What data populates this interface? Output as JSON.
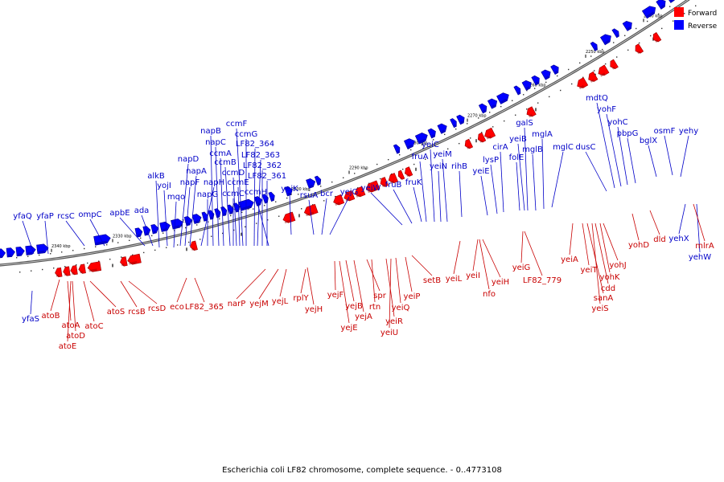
{
  "legend": {
    "forward_label": "Forward",
    "forward_color": "#ff0000",
    "reverse_label": "Reverse",
    "reverse_color": "#0000ff"
  },
  "caption": "Escherichia coli LF82 chromosome, complete sequence. - 0..4773108",
  "tick_labels": [
    "2340 kbp",
    "2330 kbp",
    "2320 kbp",
    "2310 kbp",
    "2300 kbp",
    "2290 kbp",
    "2280 kbp",
    "2270 kbp",
    "2260 kbp",
    "2250 kbp",
    "2240 kbp",
    "2230 kbp"
  ],
  "reverse_genes": [
    "yfaQ",
    "yfaP",
    "rcsC",
    "ompC",
    "apbE",
    "ada",
    "alkB",
    "yojI",
    "mqo",
    "napF",
    "napD",
    "napA",
    "napH",
    "napG",
    "napB",
    "napC",
    "ccmA",
    "ccmB",
    "ccmD",
    "ccmC",
    "ccmE",
    "ccmF",
    "ccmG",
    "LF82_364",
    "LF82_363",
    "LF82_362",
    "LF82_361",
    "ccmH",
    "yejK",
    "rsuA",
    "bcr",
    "yejG",
    "yeiW",
    "fruB",
    "fruK",
    "fruA",
    "yeiC",
    "yeiN",
    "yeiM",
    "rihB",
    "yeiE",
    "lysP",
    "cirA",
    "folE",
    "yeiB",
    "galS",
    "mglB",
    "mglA",
    "mglC",
    "dusC",
    "mdtQ",
    "yohF",
    "yohC",
    "pbpG",
    "bglX",
    "osmF",
    "yehy",
    "yfaS",
    "yehX",
    "yehW"
  ],
  "forward_genes": [
    "atoB",
    "atoA",
    "atoD",
    "atoE",
    "atoC",
    "atoS",
    "rcsB",
    "rcsD",
    "eco",
    "LF82_365",
    "narP",
    "yejM",
    "yejL",
    "rplY",
    "yejH",
    "yejF",
    "yejB",
    "yejE",
    "yejA",
    "spr",
    "rtn",
    "yeiR",
    "yeiU",
    "yeiQ",
    "yeiP",
    "setB",
    "yeiL",
    "yeiI",
    "yeiH",
    "nfo",
    "yeiG",
    "LF82_779",
    "yeiA",
    "yeiT",
    "sanA",
    "yeiS",
    "cdd",
    "yohK",
    "yohJ",
    "yohD",
    "dld",
    "mlrA"
  ]
}
